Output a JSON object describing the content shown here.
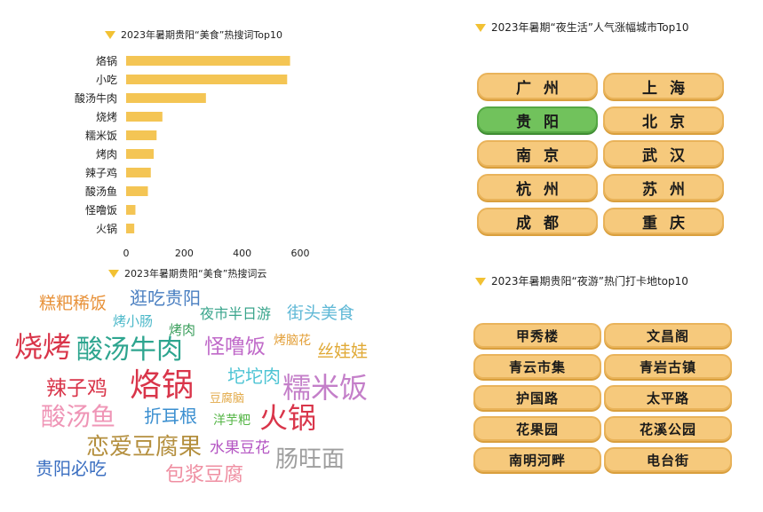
{
  "titles": {
    "food_bar": "2023年暑期贵阳“美食”热搜词Top10",
    "food_cloud": "2023年暑期贵阳“美食”热搜词云",
    "nightlife": "2023年暑期“夜生活”人气涨幅城市Top10",
    "night_tour": "2023年暑期贵阳“夜游”热门打卡地top10"
  },
  "colors": {
    "bar": "#f4c554",
    "triangle": "#f2c133",
    "pill": "#f6c97c",
    "pill_highlight": "#71c25c"
  },
  "chart_data": {
    "type": "bar",
    "orientation": "horizontal",
    "categories": [
      "烙锅",
      "小吃",
      "酸汤牛肉",
      "烧烤",
      "糯米饭",
      "烤肉",
      "辣子鸡",
      "酸汤鱼",
      "怪噜饭",
      "火锅"
    ],
    "values": [
      565,
      555,
      275,
      125,
      105,
      95,
      85,
      75,
      32,
      28
    ],
    "xlim": [
      0,
      600
    ],
    "xticks": [
      "0",
      "200",
      "400",
      "600"
    ],
    "grid": false,
    "legend": "none"
  },
  "word_cloud": [
    {
      "text": "糕粑稀饭",
      "color": "#e8923a"
    },
    {
      "text": "逛吃贵阳",
      "color": "#4a7fc1"
    },
    {
      "text": "烤小肠",
      "color": "#4bb8c9"
    },
    {
      "text": "夜市半日游",
      "color": "#3aa58c"
    },
    {
      "text": "街头美食",
      "color": "#5fb8d6"
    },
    {
      "text": "烤肉",
      "color": "#3a9e5b"
    },
    {
      "text": "烧烤",
      "color": "#d9354a"
    },
    {
      "text": "酸汤牛肉",
      "color": "#2ea58f"
    },
    {
      "text": "怪噜饭",
      "color": "#c06ac9"
    },
    {
      "text": "烤脑花",
      "color": "#e3a03a"
    },
    {
      "text": "丝娃娃",
      "color": "#e0a935"
    },
    {
      "text": "坨坨肉",
      "color": "#4dc4d4"
    },
    {
      "text": "辣子鸡",
      "color": "#d9354a"
    },
    {
      "text": "烙锅",
      "color": "#d9354a"
    },
    {
      "text": "豆腐脑",
      "color": "#e2a947"
    },
    {
      "text": "糯米饭",
      "color": "#c47fc9"
    },
    {
      "text": "酸汤鱼",
      "color": "#ef95b6"
    },
    {
      "text": "折耳根",
      "color": "#3b8fd0"
    },
    {
      "text": "洋芋粑",
      "color": "#54b545"
    },
    {
      "text": "火锅",
      "color": "#d9354a"
    },
    {
      "text": "恋爱豆腐果",
      "color": "#b48f3e"
    },
    {
      "text": "水果豆花",
      "color": "#b455c3"
    },
    {
      "text": "贵阳必吃",
      "color": "#3b6fc1"
    },
    {
      "text": "包浆豆腐",
      "color": "#ef8fa2"
    },
    {
      "text": "肠旺面",
      "color": "#9e9e9e"
    }
  ],
  "nightlife_cities": [
    "广州",
    "上海",
    "贵阳",
    "北京",
    "南京",
    "武汉",
    "杭州",
    "苏州",
    "成都",
    "重庆"
  ],
  "highlight_city": "贵阳",
  "night_spots": [
    "甲秀楼",
    "文昌阁",
    "青云市集",
    "青岩古镇",
    "护国路",
    "太平路",
    "花果园",
    "花溪公园",
    "南明河畔",
    "电台街"
  ]
}
